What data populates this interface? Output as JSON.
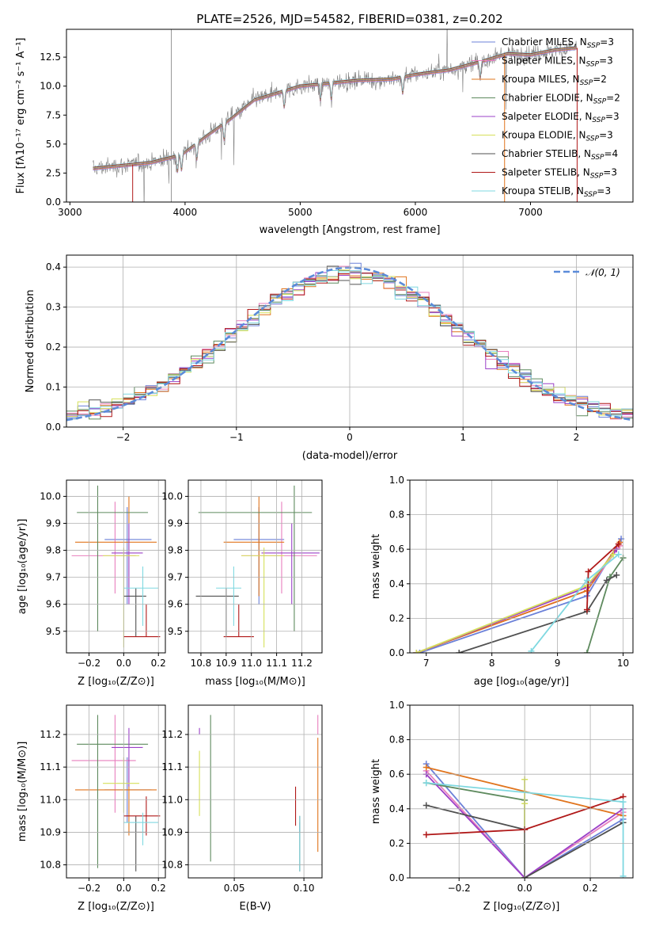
{
  "colors": {
    "Chabrier MILES": "#6b80d8",
    "Salpeter MILES": "#e87fbd",
    "Kroupa MILES": "#e0741d",
    "Chabrier ELODIE": "#5e8a5e",
    "Salpeter ELODIE": "#9b40c8",
    "Kroupa ELODIE": "#d6e05a",
    "Chabrier STELIB": "#505050",
    "Salpeter STELIB": "#b01818",
    "Kroupa STELIB": "#7fd8e0",
    "normal": "#5b8bd9",
    "observed": "#808080"
  },
  "chart_data": [
    {
      "id": "spectrum",
      "type": "line",
      "title": "PLATE=2526, MJD=54582, FIBERID=0381, z=0.202",
      "xlabel": "wavelength [Angstrom, rest frame]",
      "ylabel": "Flux [fλ10⁻¹⁷ erg cm⁻² s⁻¹ A⁻¹]",
      "xlim": [
        2970,
        7890
      ],
      "ylim": [
        0,
        14.9
      ],
      "xticks": [
        3000,
        4000,
        5000,
        6000,
        7000
      ],
      "yticks": [
        0.0,
        2.5,
        5.0,
        7.5,
        10.0,
        12.5
      ],
      "xrange_data": [
        3200,
        7400
      ],
      "continuum_knots": [
        [
          3200,
          2.9
        ],
        [
          3500,
          3.2
        ],
        [
          3700,
          3.4
        ],
        [
          3900,
          3.9
        ],
        [
          4000,
          4.3
        ],
        [
          4200,
          5.8
        ],
        [
          4400,
          7.2
        ],
        [
          4600,
          8.8
        ],
        [
          4800,
          9.4
        ],
        [
          5000,
          10.0
        ],
        [
          5200,
          10.2
        ],
        [
          5500,
          10.5
        ],
        [
          5800,
          10.6
        ],
        [
          6000,
          11.0
        ],
        [
          6300,
          11.4
        ],
        [
          6600,
          12.2
        ],
        [
          6800,
          12.8
        ],
        [
          7000,
          12.7
        ],
        [
          7200,
          13.1
        ],
        [
          7400,
          13.3
        ]
      ],
      "legend": [
        {
          "label": "Chabrier MILES, N",
          "sub": "SSP",
          "suffix": "=3"
        },
        {
          "label": "Salpeter MILES, N",
          "sub": "SSP",
          "suffix": "=3"
        },
        {
          "label": "Kroupa MILES, N",
          "sub": "SSP",
          "suffix": "=2"
        },
        {
          "label": "Chabrier ELODIE, N",
          "sub": "SSP",
          "suffix": "=2"
        },
        {
          "label": "Salpeter ELODIE, N",
          "sub": "SSP",
          "suffix": "=3"
        },
        {
          "label": "Kroupa ELODIE, N",
          "sub": "SSP",
          "suffix": "=3"
        },
        {
          "label": "Chabrier STELIB, N",
          "sub": "SSP",
          "suffix": "=4"
        },
        {
          "label": "Salpeter STELIB, N",
          "sub": "SSP",
          "suffix": "=3"
        },
        {
          "label": "Kroupa STELIB, N",
          "sub": "SSP",
          "suffix": "=3"
        }
      ],
      "legend_placement": "right",
      "grid": false
    },
    {
      "id": "residuals",
      "type": "histogram",
      "xlabel": "(data-model)/error",
      "ylabel": "Normed distribution",
      "xlim": [
        -2.5,
        2.5
      ],
      "ylim": [
        0,
        0.43
      ],
      "xticks": [
        -2,
        -1,
        0,
        1,
        2
      ],
      "yticks": [
        0.0,
        0.1,
        0.2,
        0.3,
        0.4
      ],
      "bin_width": 0.1,
      "normal_label": "𝒩(0, 1)",
      "grid": true,
      "legend_placement": "top-right"
    },
    {
      "id": "age_vs_Z",
      "type": "errorbar",
      "xlabel": "Z [log₁₀(Z/Z⊙)]",
      "ylabel": "age  [log₁₀(age/yr)]",
      "xlim": [
        -0.33,
        0.24
      ],
      "ylim": [
        9.42,
        10.06
      ],
      "xticks": [
        -0.2,
        0.0,
        0.2
      ],
      "xticklabels": [
        "−0.2",
        "0.0",
        "0.2"
      ],
      "yticks": [
        9.5,
        9.6,
        9.7,
        9.8,
        9.9,
        10.0
      ],
      "points": [
        {
          "model": "Chabrier MILES",
          "x": 0.02,
          "xerr": [
            0.13,
            0.14
          ],
          "y": 9.84,
          "yerr": [
            0.24,
            0.12
          ]
        },
        {
          "model": "Salpeter MILES",
          "x": -0.05,
          "xerr": [
            0.25,
            0.12
          ],
          "y": 9.78,
          "yerr": [
            0.14,
            0.2
          ]
        },
        {
          "model": "Kroupa MILES",
          "x": 0.03,
          "xerr": [
            0.31,
            0.16
          ],
          "y": 9.83,
          "yerr": [
            0.2,
            0.17
          ]
        },
        {
          "model": "Chabrier ELODIE",
          "x": -0.15,
          "xerr": [
            0.12,
            0.29
          ],
          "y": 9.94,
          "yerr": [
            0.44,
            0.1
          ]
        },
        {
          "model": "Salpeter ELODIE",
          "x": 0.03,
          "xerr": [
            0.1,
            0.08
          ],
          "y": 9.79,
          "yerr": [
            0.19,
            0.11
          ]
        },
        {
          "model": "Kroupa ELODIE",
          "x": 0.0,
          "xerr": [
            0.12,
            0.09
          ],
          "y": 9.78,
          "yerr": [
            0.34,
            0.03
          ]
        },
        {
          "model": "Chabrier STELIB",
          "x": 0.07,
          "xerr": [
            0.07,
            0.06
          ],
          "y": 9.63,
          "yerr": [
            0.15,
            0.03
          ]
        },
        {
          "model": "Salpeter STELIB",
          "x": 0.13,
          "xerr": [
            0.13,
            0.08
          ],
          "y": 9.48,
          "yerr": [
            0.0,
            0.12
          ]
        },
        {
          "model": "Kroupa STELIB",
          "x": 0.11,
          "xerr": [
            0.11,
            0.09
          ],
          "y": 9.66,
          "yerr": [
            0.14,
            0.08
          ]
        }
      ],
      "grid": true
    },
    {
      "id": "age_vs_mass",
      "type": "errorbar",
      "xlabel": "mass [log₁₀(M/M⊙)]",
      "xlim": [
        10.75,
        11.28
      ],
      "ylim": [
        9.42,
        10.06
      ],
      "xticks": [
        10.8,
        10.9,
        11.0,
        11.1,
        11.2
      ],
      "yticks": [
        9.5,
        9.6,
        9.7,
        9.8,
        9.9,
        10.0
      ],
      "points": [
        {
          "model": "Chabrier MILES",
          "x": 11.03,
          "xerr": [
            0.1,
            0.1
          ],
          "y": 9.84,
          "yerr": [
            0.24,
            0.12
          ]
        },
        {
          "model": "Salpeter MILES",
          "x": 11.12,
          "xerr": [
            0.16,
            0.14
          ],
          "y": 9.78,
          "yerr": [
            0.14,
            0.2
          ]
        },
        {
          "model": "Kroupa MILES",
          "x": 11.03,
          "xerr": [
            0.14,
            0.1
          ],
          "y": 9.83,
          "yerr": [
            0.2,
            0.17
          ]
        },
        {
          "model": "Chabrier ELODIE",
          "x": 11.17,
          "xerr": [
            0.38,
            0.07
          ],
          "y": 9.94,
          "yerr": [
            0.44,
            0.1
          ]
        },
        {
          "model": "Salpeter ELODIE",
          "x": 11.16,
          "xerr": [
            0.12,
            0.11
          ],
          "y": 9.79,
          "yerr": [
            0.19,
            0.11
          ]
        },
        {
          "model": "Kroupa ELODIE",
          "x": 11.05,
          "xerr": [
            0.09,
            0.08
          ],
          "y": 9.78,
          "yerr": [
            0.34,
            0.03
          ]
        },
        {
          "model": "Chabrier STELIB",
          "x": 10.9,
          "xerr": [
            0.12,
            0.05
          ],
          "y": 9.63,
          "yerr": [
            0.15,
            0.03
          ]
        },
        {
          "model": "Salpeter STELIB",
          "x": 10.95,
          "xerr": [
            0.06,
            0.06
          ],
          "y": 9.48,
          "yerr": [
            0.0,
            0.12
          ]
        },
        {
          "model": "Kroupa STELIB",
          "x": 10.93,
          "xerr": [
            0.07,
            0.03
          ],
          "y": 9.66,
          "yerr": [
            0.14,
            0.08
          ]
        }
      ],
      "grid": true
    },
    {
      "id": "massweight_vs_age",
      "type": "line",
      "xlabel": "age  [log₁₀(age/yr)]",
      "ylabel": "mass weight",
      "xlim": [
        6.75,
        10.15
      ],
      "ylim": [
        0,
        1.0
      ],
      "xticks": [
        7,
        8,
        9,
        10
      ],
      "yticks": [
        0.0,
        0.2,
        0.4,
        0.6,
        0.8,
        1.0
      ],
      "series": [
        {
          "model": "Chabrier MILES",
          "x": [
            6.9,
            9.45,
            9.97
          ],
          "y": [
            0.0,
            0.33,
            0.66
          ]
        },
        {
          "model": "Salpeter MILES",
          "x": [
            6.85,
            9.45,
            9.95
          ],
          "y": [
            0.0,
            0.36,
            0.62
          ]
        },
        {
          "model": "Kroupa MILES",
          "x": [
            6.85,
            9.45,
            9.95
          ],
          "y": [
            0.0,
            0.36,
            0.64
          ]
        },
        {
          "model": "Chabrier ELODIE",
          "x": [
            9.45,
            9.8,
            10.0
          ],
          "y": [
            0.0,
            0.44,
            0.55
          ]
        },
        {
          "model": "Salpeter ELODIE",
          "x": [
            6.85,
            9.45,
            9.9
          ],
          "y": [
            0.0,
            0.38,
            0.6
          ]
        },
        {
          "model": "Kroupa ELODIE",
          "x": [
            6.85,
            9.45,
            9.85
          ],
          "y": [
            0.0,
            0.39,
            0.57
          ]
        },
        {
          "model": "Chabrier STELIB",
          "x": [
            7.5,
            9.45,
            9.75,
            9.9
          ],
          "y": [
            0.0,
            0.24,
            0.42,
            0.45
          ]
        },
        {
          "model": "Salpeter STELIB",
          "x": [
            9.45,
            9.47,
            9.93
          ],
          "y": [
            0.25,
            0.47,
            0.63
          ]
        },
        {
          "model": "Kroupa STELIB",
          "x": [
            8.6,
            9.45,
            9.93
          ],
          "y": [
            0.01,
            0.42,
            0.57
          ]
        }
      ],
      "grid": true
    },
    {
      "id": "mass_vs_Z",
      "type": "errorbar",
      "xlabel": "Z [log₁₀(Z/Z⊙)]",
      "ylabel": "mass [log₁₀(M/M⊙)]",
      "xlim": [
        -0.33,
        0.24
      ],
      "ylim": [
        10.76,
        11.29
      ],
      "xticks": [
        -0.2,
        0.0,
        0.2
      ],
      "xticklabels": [
        "−0.2",
        "0.0",
        "0.2"
      ],
      "yticks": [
        10.8,
        10.9,
        11.0,
        11.1,
        11.2
      ],
      "points": [
        {
          "model": "Chabrier MILES",
          "x": 0.02,
          "xerr": [
            0.13,
            0.14
          ],
          "y": 11.03,
          "yerr": [
            0.1,
            0.1
          ]
        },
        {
          "model": "Salpeter MILES",
          "x": -0.05,
          "xerr": [
            0.25,
            0.12
          ],
          "y": 11.12,
          "yerr": [
            0.16,
            0.14
          ]
        },
        {
          "model": "Kroupa MILES",
          "x": 0.03,
          "xerr": [
            0.31,
            0.16
          ],
          "y": 11.03,
          "yerr": [
            0.14,
            0.1
          ]
        },
        {
          "model": "Chabrier ELODIE",
          "x": -0.15,
          "xerr": [
            0.12,
            0.29
          ],
          "y": 11.17,
          "yerr": [
            0.38,
            0.09
          ]
        },
        {
          "model": "Salpeter ELODIE",
          "x": 0.03,
          "xerr": [
            0.1,
            0.08
          ],
          "y": 11.16,
          "yerr": [
            0.12,
            0.06
          ]
        },
        {
          "model": "Kroupa ELODIE",
          "x": 0.0,
          "xerr": [
            0.12,
            0.09
          ],
          "y": 11.05,
          "yerr": [
            0.09,
            0.08
          ]
        },
        {
          "model": "Chabrier STELIB",
          "x": 0.07,
          "xerr": [
            0.07,
            0.06
          ],
          "y": 10.9,
          "yerr": [
            0.12,
            0.05
          ]
        },
        {
          "model": "Salpeter STELIB",
          "x": 0.13,
          "xerr": [
            0.13,
            0.08
          ],
          "y": 10.95,
          "yerr": [
            0.06,
            0.06
          ]
        },
        {
          "model": "Kroupa STELIB",
          "x": 0.11,
          "xerr": [
            0.11,
            0.09
          ],
          "y": 10.93,
          "yerr": [
            0.07,
            0.03
          ]
        }
      ],
      "grid": true
    },
    {
      "id": "mass_vs_ebv",
      "type": "errorbar",
      "xlabel": "E(B-V)",
      "xlim": [
        0.017,
        0.113
      ],
      "ylim": [
        10.76,
        11.29
      ],
      "xticks": [
        0.05,
        0.1
      ],
      "yticks": [
        10.8,
        10.9,
        11.0,
        11.1,
        11.2
      ],
      "points": [
        {
          "model": "Chabrier MILES",
          "x": 0.097,
          "y": 10.9,
          "yerr": [
            0.0,
            0.03
          ]
        },
        {
          "model": "Salpeter MILES",
          "x": 0.11,
          "y": 11.2,
          "yerr": [
            0.0,
            0.06
          ]
        },
        {
          "model": "Kroupa MILES",
          "x": 0.11,
          "y": 11.03,
          "yerr": [
            0.19,
            0.16
          ]
        },
        {
          "model": "Chabrier ELODIE",
          "x": 0.033,
          "y": 11.03,
          "yerr": [
            0.22,
            0.23
          ]
        },
        {
          "model": "Salpeter ELODIE",
          "x": 0.025,
          "y": 11.2,
          "yerr": [
            0.0,
            0.02
          ]
        },
        {
          "model": "Kroupa ELODIE",
          "x": 0.025,
          "y": 11.03,
          "yerr": [
            0.08,
            0.12
          ]
        },
        {
          "model": "Chabrier STELIB",
          "x": 0.097,
          "y": 10.85,
          "yerr": [
            0.07,
            0.1
          ]
        },
        {
          "model": "Salpeter STELIB",
          "x": 0.094,
          "y": 10.98,
          "yerr": [
            0.06,
            0.06
          ]
        },
        {
          "model": "Kroupa STELIB",
          "x": 0.097,
          "y": 10.87,
          "yerr": [
            0.09,
            0.08
          ]
        }
      ],
      "grid": true
    },
    {
      "id": "massweight_vs_Z",
      "type": "line",
      "xlabel": "Z [log₁₀(Z/Z⊙)]",
      "ylabel": "mass weight",
      "xlim": [
        -0.35,
        0.33
      ],
      "ylim": [
        0,
        1.0
      ],
      "xticks": [
        -0.2,
        0.0,
        0.2
      ],
      "xticklabels": [
        "−0.2",
        "0.0",
        "0.2"
      ],
      "yticks": [
        0.0,
        0.2,
        0.4,
        0.6,
        0.8,
        1.0
      ],
      "series": [
        {
          "model": "Chabrier MILES",
          "x": [
            -0.3,
            0.0,
            0.3
          ],
          "y": [
            0.66,
            0.0,
            0.34
          ]
        },
        {
          "model": "Salpeter MILES",
          "x": [
            -0.3,
            0.0,
            0.3
          ],
          "y": [
            0.62,
            0.0,
            0.38
          ]
        },
        {
          "model": "Kroupa MILES",
          "x": [
            -0.3,
            0.3
          ],
          "y": [
            0.64,
            0.36
          ]
        },
        {
          "model": "Chabrier ELODIE",
          "x": [
            -0.3,
            0.0,
            0.0
          ],
          "y": [
            0.55,
            0.45,
            0.0
          ]
        },
        {
          "model": "Salpeter ELODIE",
          "x": [
            -0.3,
            0.0,
            0.3
          ],
          "y": [
            0.6,
            0.0,
            0.4
          ]
        },
        {
          "model": "Kroupa ELODIE",
          "x": [
            0.0,
            0.0,
            0.0
          ],
          "y": [
            0.57,
            0.43,
            0.0
          ]
        },
        {
          "model": "Chabrier STELIB",
          "x": [
            -0.3,
            0.0,
            0.0,
            0.3
          ],
          "y": [
            0.42,
            0.28,
            0.0,
            0.32
          ]
        },
        {
          "model": "Salpeter STELIB",
          "x": [
            -0.3,
            0.0,
            0.3
          ],
          "y": [
            0.25,
            0.28,
            0.47
          ]
        },
        {
          "model": "Kroupa STELIB",
          "x": [
            -0.3,
            0.3,
            0.3
          ],
          "y": [
            0.55,
            0.44,
            0.01
          ]
        }
      ],
      "grid": true
    }
  ]
}
